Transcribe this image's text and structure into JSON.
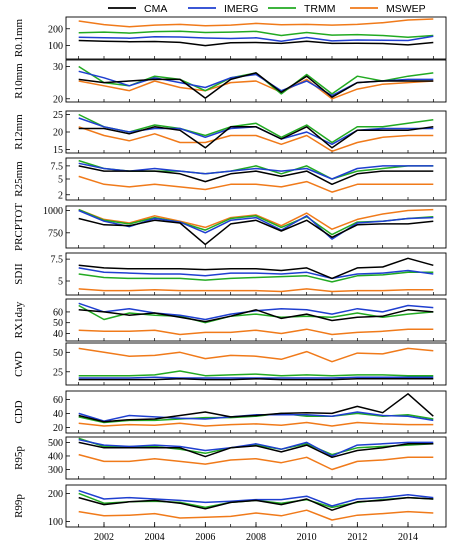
{
  "chart_data": {
    "type": "line",
    "x": [
      2001,
      2002,
      2003,
      2004,
      2005,
      2006,
      2007,
      2008,
      2009,
      2010,
      2011,
      2012,
      2013,
      2014,
      2015
    ],
    "x_ticks": [
      "2002",
      "2004",
      "2006",
      "2008",
      "2010",
      "2012",
      "2014"
    ],
    "legend": [
      {
        "name": "CMA",
        "color": "#000000"
      },
      {
        "name": "IMERG",
        "color": "#1f3fd0"
      },
      {
        "name": "TRMM",
        "color": "#22aa22"
      },
      {
        "name": "MSWEP",
        "color": "#f07a1a"
      }
    ],
    "legend_position": "top",
    "panels": [
      {
        "ylabel": "R0.1mm",
        "yticks": [
          100,
          200
        ],
        "ylim": [
          20,
          270
        ],
        "log": false,
        "series": {
          "CMA": [
            130,
            126,
            123,
            124,
            119,
            100,
            117,
            118,
            113,
            126,
            113,
            114,
            112,
            104,
            118
          ],
          "IMERG": [
            150,
            146,
            144,
            153,
            151,
            145,
            142,
            146,
            126,
            148,
            128,
            133,
            132,
            130,
            155
          ],
          "TRMM": [
            176,
            180,
            174,
            183,
            185,
            178,
            180,
            184,
            160,
            178,
            162,
            165,
            160,
            150,
            160
          ],
          "MSWEP": [
            246,
            225,
            212,
            222,
            226,
            218,
            222,
            232,
            224,
            226,
            222,
            226,
            236,
            252,
            258
          ]
        }
      },
      {
        "ylabel": "R10mm",
        "yticks": [
          20,
          30
        ],
        "ylim": [
          19,
          32
        ],
        "log": false,
        "series": {
          "CMA": [
            26.0,
            25.0,
            25.5,
            26.0,
            26.0,
            20.2,
            26.0,
            28.0,
            22.0,
            27.0,
            20.5,
            25.0,
            25.5,
            25.5,
            25.5
          ],
          "IMERG": [
            28.5,
            26.5,
            24.0,
            26.5,
            25.0,
            23.5,
            26.5,
            27.5,
            22.5,
            25.5,
            21.0,
            25.0,
            25.5,
            26.0,
            26.0
          ],
          "TRMM": [
            30.0,
            25.0,
            24.0,
            27.0,
            26.0,
            22.5,
            26.5,
            28.0,
            21.5,
            27.5,
            21.5,
            27.0,
            25.5,
            27.0,
            28.0
          ],
          "MSWEP": [
            25.5,
            24.0,
            22.5,
            25.5,
            23.5,
            22.5,
            25.0,
            25.5,
            22.0,
            26.0,
            20.0,
            23.0,
            24.5,
            25.0,
            25.5
          ]
        }
      },
      {
        "ylabel": "R12mm",
        "yticks": [
          15,
          20,
          25
        ],
        "ylim": [
          14,
          26
        ],
        "log": false,
        "series": {
          "CMA": [
            21.0,
            21.0,
            19.5,
            21.5,
            20.5,
            15.5,
            21.5,
            21.5,
            18.0,
            21.5,
            15.5,
            20.5,
            20.5,
            20.5,
            21.5
          ],
          "IMERG": [
            24.0,
            21.5,
            20.0,
            21.0,
            21.0,
            18.5,
            21.0,
            21.5,
            18.0,
            20.0,
            16.5,
            20.5,
            21.0,
            21.0,
            21.0
          ],
          "TRMM": [
            25.0,
            21.5,
            20.0,
            22.0,
            21.0,
            19.0,
            21.5,
            22.5,
            18.5,
            22.0,
            17.0,
            21.5,
            21.5,
            22.5,
            23.5
          ],
          "MSWEP": [
            21.5,
            19.0,
            17.5,
            19.5,
            17.0,
            17.0,
            19.0,
            19.0,
            16.5,
            19.0,
            14.5,
            17.0,
            18.5,
            19.0,
            19.0
          ]
        }
      },
      {
        "ylabel": "R25mm",
        "yticks": [
          2,
          5,
          7.5
        ],
        "ylim": [
          1,
          9
        ],
        "log": false,
        "series": {
          "CMA": [
            7.5,
            6.5,
            6.5,
            6.5,
            6.0,
            4.5,
            6.0,
            6.5,
            5.5,
            6.5,
            4.0,
            6.0,
            6.5,
            6.5,
            6.5
          ],
          "IMERG": [
            8.0,
            7.0,
            6.5,
            7.0,
            6.5,
            6.0,
            6.5,
            7.0,
            6.5,
            7.0,
            5.0,
            7.0,
            7.5,
            7.5,
            7.5
          ],
          "TRMM": [
            8.5,
            7.0,
            6.5,
            6.5,
            6.5,
            6.0,
            6.5,
            7.5,
            6.0,
            7.5,
            5.0,
            6.5,
            7.0,
            7.5,
            7.5
          ],
          "MSWEP": [
            5.5,
            4.0,
            3.5,
            4.0,
            3.5,
            3.0,
            4.0,
            4.0,
            3.5,
            4.5,
            2.5,
            4.0,
            4.0,
            4.0,
            4.0
          ]
        }
      },
      {
        "ylabel": "PRCPTOT",
        "yticks": [
          750,
          1000
        ],
        "ylim": [
          580,
          1050
        ],
        "log": false,
        "series": {
          "CMA": [
            910,
            840,
            830,
            890,
            860,
            620,
            850,
            890,
            770,
            890,
            700,
            840,
            850,
            850,
            880
          ],
          "IMERG": [
            1000,
            880,
            820,
            910,
            870,
            750,
            890,
            920,
            780,
            940,
            680,
            860,
            880,
            910,
            920
          ],
          "TRMM": [
            1010,
            890,
            850,
            920,
            870,
            780,
            910,
            940,
            810,
            930,
            730,
            870,
            880,
            910,
            930
          ],
          "MSWEP": [
            1010,
            900,
            860,
            940,
            880,
            810,
            920,
            950,
            830,
            970,
            790,
            900,
            960,
            1000,
            1010
          ]
        }
      },
      {
        "ylabel": "SDII",
        "yticks": [
          5,
          7.5
        ],
        "ylim": [
          3.4,
          8.2
        ],
        "log": false,
        "series": {
          "CMA": [
            6.8,
            6.5,
            6.4,
            6.4,
            6.4,
            6.3,
            6.4,
            6.4,
            6.2,
            6.5,
            5.3,
            6.5,
            6.6,
            7.6,
            6.8
          ],
          "IMERG": [
            6.5,
            6.0,
            5.9,
            5.8,
            5.8,
            5.6,
            5.9,
            5.9,
            5.8,
            6.0,
            5.3,
            5.8,
            5.9,
            6.2,
            5.8
          ],
          "TRMM": [
            5.8,
            5.4,
            5.3,
            5.3,
            5.3,
            5.1,
            5.3,
            5.4,
            5.5,
            5.6,
            4.9,
            5.6,
            5.7,
            6.0,
            6.0
          ],
          "MSWEP": [
            4.1,
            3.9,
            3.9,
            4.0,
            3.9,
            3.9,
            3.9,
            3.9,
            3.8,
            4.1,
            3.8,
            3.9,
            3.9,
            4.0,
            4.0
          ]
        }
      },
      {
        "ylabel": "RX1day",
        "yticks": [
          40,
          50,
          60
        ],
        "ylim": [
          33,
          72
        ],
        "log": false,
        "series": {
          "CMA": [
            62,
            60,
            57,
            59,
            55,
            51,
            56,
            62,
            54,
            58,
            52,
            55,
            56,
            62,
            60
          ],
          "IMERG": [
            68,
            60,
            63,
            59,
            57,
            53,
            58,
            61,
            63,
            62,
            58,
            63,
            60,
            66,
            64
          ],
          "TRMM": [
            66,
            53,
            59,
            57,
            56,
            50,
            56,
            58,
            55,
            56,
            55,
            59,
            55,
            58,
            60
          ],
          "MSWEP": [
            43,
            42,
            42,
            43,
            39,
            41,
            41,
            43,
            40,
            44,
            39,
            41,
            42,
            44,
            44
          ]
        }
      },
      {
        "ylabel": "CWD",
        "yticks": [
          25,
          50
        ],
        "ylim": [
          8,
          62
        ],
        "log": false,
        "series": {
          "CMA": [
            15,
            15,
            15,
            15,
            16,
            15,
            15,
            16,
            15,
            15,
            15,
            16,
            16,
            16,
            16
          ],
          "IMERG": [
            17,
            17,
            17,
            18,
            17,
            17,
            17,
            17,
            17,
            17,
            17,
            18,
            18,
            18,
            18
          ],
          "TRMM": [
            20,
            20,
            20,
            21,
            26,
            20,
            21,
            22,
            20,
            21,
            20,
            21,
            21,
            20,
            20
          ],
          "MSWEP": [
            55,
            50,
            45,
            46,
            50,
            42,
            46,
            45,
            41,
            51,
            38,
            49,
            48,
            55,
            52
          ]
        }
      },
      {
        "ylabel": "CDD",
        "yticks": [
          20,
          40,
          60
        ],
        "ylim": [
          12,
          72
        ],
        "log": false,
        "series": {
          "CMA": [
            37,
            28,
            31,
            32,
            37,
            42,
            35,
            37,
            40,
            41,
            40,
            50,
            41,
            68,
            36
          ],
          "IMERG": [
            40,
            29,
            37,
            35,
            33,
            32,
            35,
            38,
            38,
            38,
            36,
            42,
            37,
            36,
            30
          ],
          "TRMM": [
            35,
            27,
            30,
            30,
            32,
            34,
            34,
            36,
            40,
            36,
            36,
            40,
            36,
            38,
            32
          ],
          "MSWEP": [
            26,
            22,
            24,
            23,
            26,
            22,
            24,
            25,
            23,
            27,
            22,
            27,
            25,
            24,
            24
          ]
        }
      },
      {
        "ylabel": "R95p",
        "yticks": [
          300,
          400,
          500
        ],
        "ylim": [
          230,
          540
        ],
        "log": false,
        "series": {
          "CMA": [
            500,
            460,
            460,
            460,
            460,
            395,
            460,
            475,
            430,
            480,
            390,
            440,
            460,
            490,
            490
          ],
          "IMERG": [
            520,
            480,
            470,
            480,
            470,
            440,
            460,
            490,
            450,
            500,
            400,
            480,
            490,
            500,
            500
          ],
          "TRMM": [
            530,
            470,
            470,
            470,
            450,
            420,
            460,
            480,
            450,
            490,
            410,
            460,
            470,
            480,
            490
          ],
          "MSWEP": [
            410,
            360,
            360,
            380,
            360,
            340,
            370,
            380,
            350,
            390,
            300,
            360,
            370,
            390,
            390
          ]
        }
      },
      {
        "ylabel": "R99p",
        "yticks": [
          100,
          200
        ],
        "ylim": [
          80,
          230
        ],
        "log": false,
        "series": {
          "CMA": [
            185,
            160,
            170,
            175,
            165,
            145,
            168,
            175,
            160,
            180,
            140,
            170,
            175,
            185,
            180
          ],
          "IMERG": [
            210,
            180,
            185,
            180,
            175,
            168,
            172,
            178,
            178,
            190,
            155,
            180,
            185,
            195,
            185
          ],
          "TRMM": [
            200,
            165,
            170,
            172,
            168,
            150,
            168,
            175,
            165,
            178,
            150,
            168,
            178,
            185,
            180
          ],
          "MSWEP": [
            135,
            120,
            122,
            128,
            112,
            115,
            118,
            130,
            120,
            140,
            105,
            122,
            128,
            135,
            130
          ]
        }
      }
    ]
  }
}
